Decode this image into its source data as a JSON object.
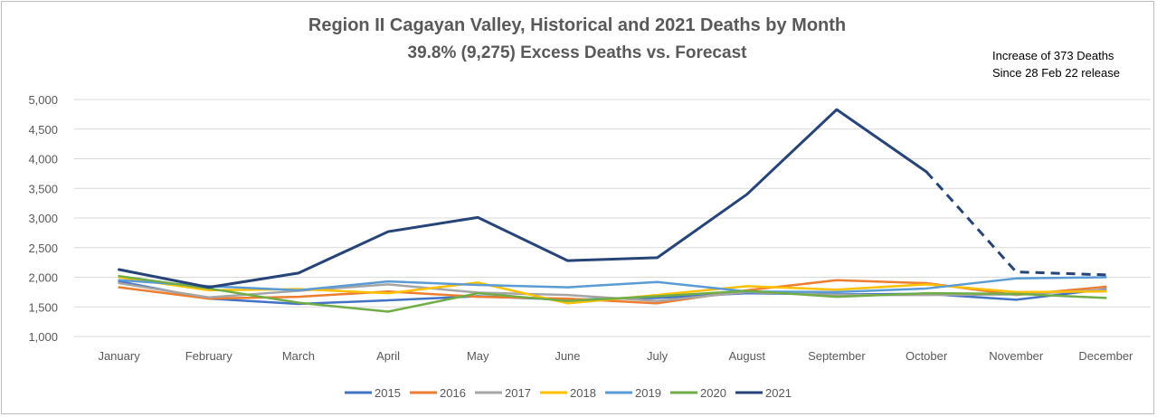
{
  "chart_data": {
    "type": "line",
    "title": "Region II Cagayan Valley, Historical and 2021 Deaths by Month",
    "subtitle": "39.8% (9,275) Excess Deaths vs. Forecast",
    "annotation": [
      "Increase of 373 Deaths",
      "Since 28 Feb 22 release"
    ],
    "categories": [
      "January",
      "February",
      "March",
      "April",
      "May",
      "June",
      "July",
      "August",
      "September",
      "October",
      "November",
      "December"
    ],
    "ylim": [
      1000,
      5000
    ],
    "yticks": [
      1000,
      1500,
      2000,
      2500,
      3000,
      3500,
      4000,
      4500,
      5000
    ],
    "ytick_labels": [
      "1,000",
      "1,500",
      "2,000",
      "2,500",
      "3,000",
      "3,500",
      "4,000",
      "4,500",
      "5,000"
    ],
    "grid": "horizontal",
    "legend_position": "bottom",
    "series": [
      {
        "name": "2015",
        "color": "#4472c4",
        "values": [
          1930,
          1640,
          1550,
          1610,
          1680,
          1620,
          1650,
          1730,
          1710,
          1720,
          1620,
          1800
        ]
      },
      {
        "name": "2016",
        "color": "#ed7d31",
        "values": [
          1830,
          1640,
          1670,
          1760,
          1670,
          1640,
          1560,
          1780,
          1950,
          1900,
          1700,
          1840
        ]
      },
      {
        "name": "2017",
        "color": "#a5a5a5",
        "values": [
          1900,
          1660,
          1770,
          1880,
          1740,
          1700,
          1600,
          1750,
          1700,
          1700,
          1710,
          1790
        ]
      },
      {
        "name": "2018",
        "color": "#ffc000",
        "values": [
          2000,
          1780,
          1800,
          1730,
          1910,
          1560,
          1700,
          1850,
          1790,
          1880,
          1750,
          1760
        ]
      },
      {
        "name": "2019",
        "color": "#5b9bd5",
        "values": [
          1950,
          1850,
          1780,
          1930,
          1870,
          1830,
          1920,
          1760,
          1750,
          1810,
          1980,
          2000
        ]
      },
      {
        "name": "2020",
        "color": "#70ad47",
        "values": [
          2020,
          1810,
          1570,
          1420,
          1730,
          1600,
          1680,
          1770,
          1670,
          1730,
          1720,
          1650
        ]
      },
      {
        "name": "2021",
        "color": "#264478",
        "values": [
          2130,
          1830,
          2070,
          2770,
          3010,
          2280,
          2330,
          3400,
          4830,
          3780,
          2090,
          2040
        ],
        "dashed_from_index": 9
      }
    ]
  }
}
